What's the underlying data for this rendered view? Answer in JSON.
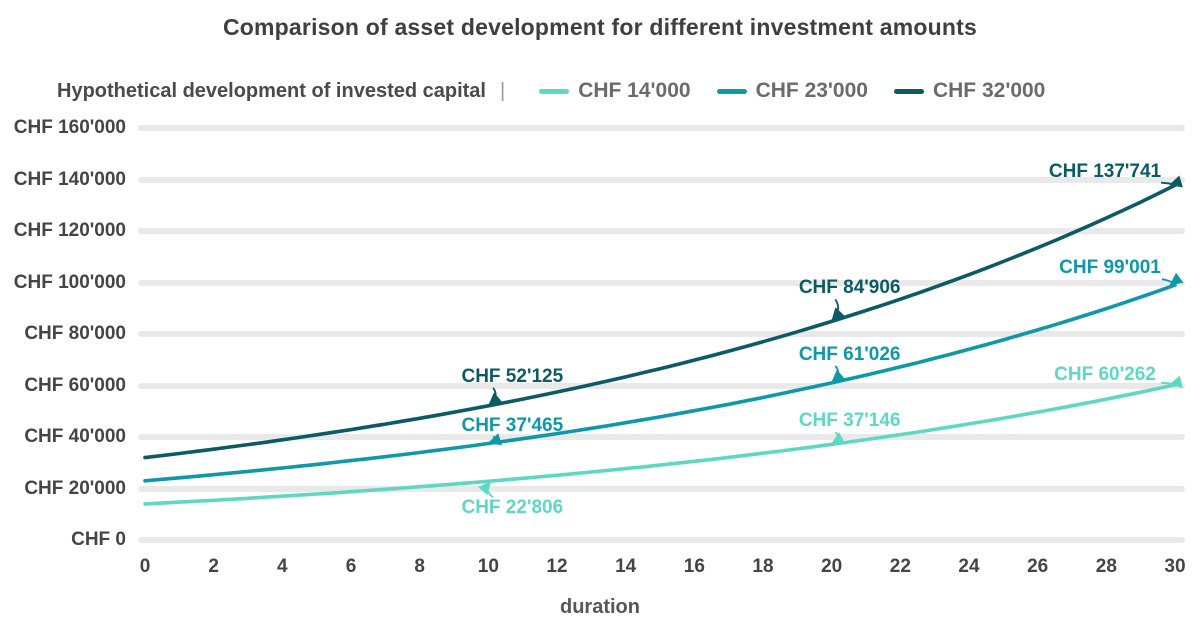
{
  "title": "Comparison of asset development for different investment amounts",
  "legend": {
    "title": "Hypothetical development of invested capital",
    "divider": "|",
    "items": [
      {
        "label": "CHF 14'000"
      },
      {
        "label": "CHF 23'000"
      },
      {
        "label": "CHF 32'000"
      }
    ]
  },
  "xaxis": {
    "label": "duration"
  },
  "colors": {
    "title_text": "#3f3f3f",
    "tick_text": "#454545",
    "gridline": "#e9e9e9",
    "legend_text": "#6b6b6b"
  },
  "chart_data": {
    "type": "line",
    "title": "Comparison of asset development for different investment amounts",
    "xlabel": "duration",
    "ylabel": "",
    "xlim": [
      0,
      30
    ],
    "ylim": [
      0,
      160000
    ],
    "xticks": [
      0,
      2,
      4,
      6,
      8,
      10,
      12,
      14,
      16,
      18,
      20,
      22,
      24,
      26,
      28,
      30
    ],
    "ytick_values": [
      0,
      20000,
      40000,
      60000,
      80000,
      100000,
      120000,
      140000,
      160000
    ],
    "ytick_labels": [
      "CHF 0",
      "CHF 20'000",
      "CHF 40'000",
      "CHF 60'000",
      "CHF 80'000",
      "CHF 100'000",
      "CHF 120'000",
      "CHF 140'000",
      "CHF 160'000"
    ],
    "grid": "horizontal",
    "legend_position": "top",
    "series": [
      {
        "name": "CHF 14'000",
        "color": "#5ed8c3",
        "points": [
          {
            "x": 0,
            "y": 14000
          },
          {
            "x": 10,
            "y": 22806
          },
          {
            "x": 20,
            "y": 37146
          },
          {
            "x": 30,
            "y": 60262
          }
        ],
        "labeled_points": [
          {
            "x": 10,
            "value": 22806,
            "text": "CHF 22'806"
          },
          {
            "x": 20,
            "value": 37146,
            "text": "CHF 37'146"
          },
          {
            "x": 30,
            "value": 60262,
            "text": "CHF 60'262"
          }
        ]
      },
      {
        "name": "CHF 23'000",
        "color": "#0e98a8",
        "points": [
          {
            "x": 0,
            "y": 23000
          },
          {
            "x": 10,
            "y": 37465
          },
          {
            "x": 20,
            "y": 61026
          },
          {
            "x": 30,
            "y": 99001
          }
        ],
        "labeled_points": [
          {
            "x": 10,
            "value": 37465,
            "text": "CHF 37'465"
          },
          {
            "x": 20,
            "value": 61026,
            "text": "CHF 61'026"
          },
          {
            "x": 30,
            "value": 99001,
            "text": "CHF 99'001"
          }
        ]
      },
      {
        "name": "CHF 32'000",
        "color": "#0b5a64",
        "points": [
          {
            "x": 0,
            "y": 32000
          },
          {
            "x": 10,
            "y": 52125
          },
          {
            "x": 20,
            "y": 84906
          },
          {
            "x": 30,
            "y": 137741
          }
        ],
        "labeled_points": [
          {
            "x": 10,
            "value": 52125,
            "text": "CHF 52'125"
          },
          {
            "x": 20,
            "value": 84906,
            "text": "CHF 84'906"
          },
          {
            "x": 30,
            "value": 137741,
            "text": "CHF 137'741"
          }
        ]
      }
    ]
  }
}
